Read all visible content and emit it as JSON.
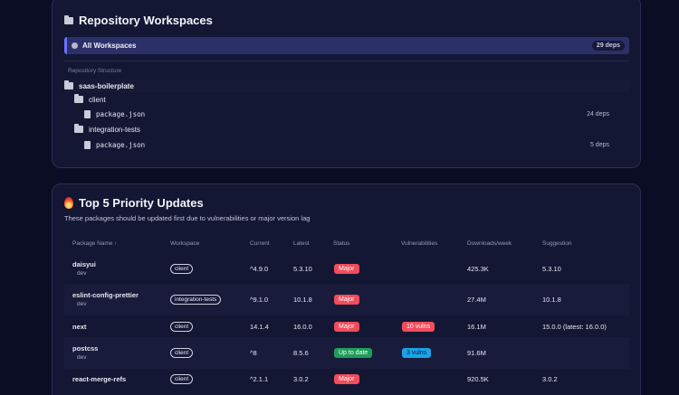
{
  "workspaces": {
    "title": "Repository Workspaces",
    "all": {
      "label": "All Workspaces",
      "deps": "29 deps"
    },
    "structure_label": "Repository Structure",
    "tree": {
      "root": "saas-boilerplate",
      "nodes": [
        {
          "folder": "client",
          "file": "package.json",
          "deps": "24 deps"
        },
        {
          "folder": "integration-tests",
          "file": "package.json",
          "deps": "5 deps"
        }
      ]
    }
  },
  "updates": {
    "title": "Top 5 Priority Updates",
    "subtitle": "These packages should be updated first due to vulnerabilities or major version lag",
    "columns": [
      "Package Name ↑",
      "Workspace",
      "Current",
      "Latest",
      "Status",
      "Vulnerabilities",
      "Downloads/week",
      "Suggestion"
    ],
    "rows": [
      {
        "name": "daisyui",
        "env": "dev",
        "workspace": "client",
        "current": "^4.9.0",
        "latest": "5.3.10",
        "status": "Major",
        "vulns": "",
        "downloads": "425.3K",
        "suggestion": "5.3.10"
      },
      {
        "name": "eslint-config-prettier",
        "env": "dev",
        "workspace": "integration-tests",
        "current": "^9.1.0",
        "latest": "10.1.8",
        "status": "Major",
        "vulns": "",
        "downloads": "27.4M",
        "suggestion": "10.1.8"
      },
      {
        "name": "next",
        "env": "",
        "workspace": "client",
        "current": "14.1.4",
        "latest": "16.0.0",
        "status": "Major",
        "vulns": "10 vulns",
        "downloads": "16.1M",
        "suggestion": "15.0.0 (latest: 16.0.0)"
      },
      {
        "name": "postcss",
        "env": "dev",
        "workspace": "client",
        "current": "^8",
        "latest": "8.5.6",
        "status": "Up to date",
        "vulns": "3 vulns",
        "downloads": "91.6M",
        "suggestion": ""
      },
      {
        "name": "react-merge-refs",
        "env": "",
        "workspace": "client",
        "current": "^2.1.1",
        "latest": "3.0.2",
        "status": "Major",
        "vulns": "",
        "downloads": "920.5K",
        "suggestion": "3.0.2"
      }
    ]
  },
  "colors": {
    "accent": "#6b72ff",
    "major": "#f14c5c",
    "up_to_date": "#1f9d5a",
    "vuln_low": "#1aa3e8"
  }
}
